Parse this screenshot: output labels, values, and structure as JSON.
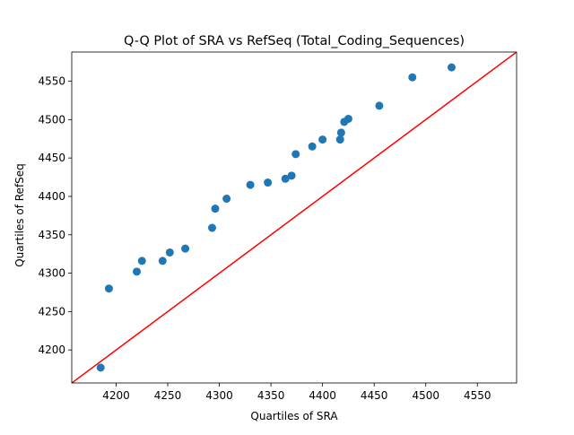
{
  "chart_data": {
    "type": "scatter",
    "title": "Q-Q Plot of SRA vs RefSeq (Total_Coding_Sequences)",
    "xlabel": "Quartiles of SRA",
    "ylabel": "Quartiles of RefSeq",
    "xlim": [
      4157,
      4588
    ],
    "ylim": [
      4157,
      4588
    ],
    "xticks": [
      4200,
      4250,
      4300,
      4350,
      4400,
      4450,
      4500,
      4550
    ],
    "yticks": [
      4200,
      4250,
      4300,
      4350,
      4400,
      4450,
      4500,
      4550
    ],
    "grid": false,
    "legend": "none",
    "points_color": "#1f77b4",
    "reference_line": {
      "color": "#ff0000",
      "slope": 1,
      "intercept": 0
    },
    "series": [
      {
        "x": [
          4185,
          4193,
          4220,
          4225,
          4245,
          4252,
          4267,
          4293,
          4296,
          4307,
          4330,
          4347,
          4364,
          4370,
          4374,
          4390,
          4400,
          4417,
          4418,
          4421,
          4425,
          4455,
          4487,
          4525
        ],
        "y": [
          4177,
          4280,
          4302,
          4316,
          4316,
          4327,
          4332,
          4359,
          4384,
          4397,
          4415,
          4418,
          4423,
          4427,
          4455,
          4465,
          4474,
          4474,
          4483,
          4497,
          4501,
          4518,
          4555,
          4568
        ]
      }
    ]
  }
}
